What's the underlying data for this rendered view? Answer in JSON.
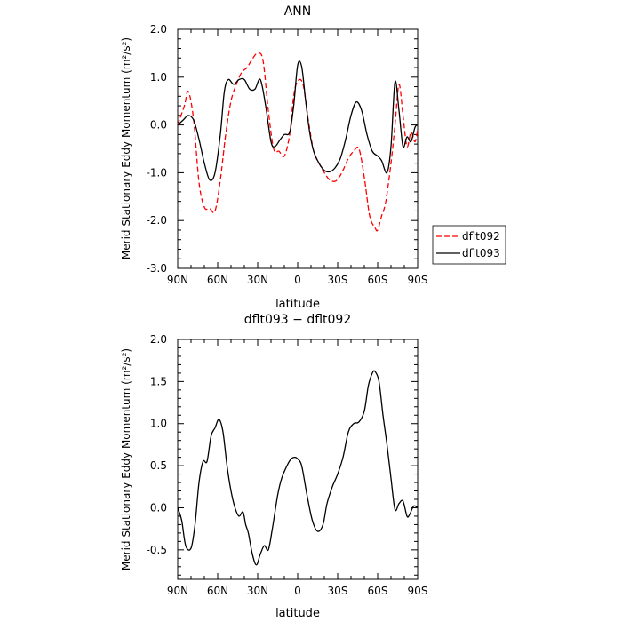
{
  "chart_data": [
    {
      "type": "line",
      "title": "ANN",
      "xlabel": "latitude",
      "ylabel": "Merid Stationary Eddy Momentum (m²/s²)",
      "xlim": [
        90,
        -90
      ],
      "ylim": [
        -3.0,
        2.0
      ],
      "xticks": [
        90,
        60,
        30,
        0,
        -30,
        -60,
        -90
      ],
      "xtick_labels": [
        "90N",
        "60N",
        "30N",
        "0",
        "30S",
        "60S",
        "90S"
      ],
      "yticks": [
        -3.0,
        -2.0,
        -1.0,
        0.0,
        1.0,
        2.0
      ],
      "ytick_labels": [
        "-3.0",
        "-2.0",
        "-1.0",
        "0.0",
        "1.0",
        "2.0"
      ],
      "legend_position": "right",
      "series": [
        {
          "name": "dflt092",
          "color": "#ff0000",
          "dash": "dashed",
          "x": [
            90,
            85,
            82,
            78,
            74,
            70,
            66,
            62,
            58,
            54,
            50,
            46,
            42,
            38,
            34,
            30,
            26,
            22,
            18,
            14,
            10,
            6,
            3,
            0,
            -4,
            -8,
            -12,
            -16,
            -20,
            -24,
            -28,
            -31,
            -34,
            -38,
            -42,
            -46,
            -50,
            -54,
            -58,
            -60,
            -63,
            -66,
            -70,
            -73,
            -76,
            -79,
            -82,
            -85,
            -88,
            -90
          ],
          "y": [
            0.0,
            0.4,
            0.7,
            0.1,
            -1.2,
            -1.72,
            -1.75,
            -1.8,
            -1.15,
            -0.2,
            0.5,
            0.85,
            1.1,
            1.2,
            1.38,
            1.5,
            1.35,
            0.3,
            -0.5,
            -0.55,
            -0.65,
            -0.2,
            0.6,
            0.92,
            0.85,
            0.1,
            -0.55,
            -0.8,
            -1.0,
            -1.15,
            -1.18,
            -1.1,
            -0.95,
            -0.7,
            -0.55,
            -0.5,
            -1.1,
            -1.9,
            -2.15,
            -2.2,
            -1.9,
            -1.62,
            -0.8,
            0.0,
            0.85,
            0.2,
            -0.45,
            -0.15,
            -0.35,
            -0.1
          ]
        },
        {
          "name": "dflt093",
          "color": "#000000",
          "dash": "solid",
          "x": [
            90,
            86,
            82,
            78,
            74,
            70,
            66,
            62,
            58,
            55,
            52,
            48,
            44,
            40,
            36,
            32,
            28,
            24,
            20,
            17,
            13,
            10,
            6,
            3,
            0,
            -3,
            -6,
            -9,
            -12,
            -16,
            -20,
            -24,
            -28,
            -32,
            -36,
            -40,
            -44,
            -48,
            -52,
            -56,
            -60,
            -63,
            -67,
            -70,
            -73,
            -76,
            -79,
            -82,
            -85,
            -88,
            -90
          ],
          "y": [
            0.0,
            0.1,
            0.2,
            0.1,
            -0.3,
            -0.8,
            -1.15,
            -1.0,
            -0.2,
            0.7,
            0.95,
            0.85,
            0.95,
            0.95,
            0.75,
            0.75,
            0.95,
            0.4,
            -0.35,
            -0.45,
            -0.3,
            -0.2,
            -0.15,
            0.4,
            1.25,
            1.22,
            0.5,
            -0.15,
            -0.55,
            -0.8,
            -0.95,
            -0.98,
            -0.9,
            -0.7,
            -0.3,
            0.2,
            0.48,
            0.3,
            -0.2,
            -0.55,
            -0.65,
            -0.75,
            -1.0,
            -0.45,
            0.9,
            0.3,
            -0.45,
            -0.25,
            -0.35,
            -0.05,
            0.0
          ]
        }
      ]
    },
    {
      "type": "line",
      "title": "dflt093 − dflt092",
      "xlabel": "latitude",
      "ylabel": "Merid Stationary Eddy Momentum (m²/s²)",
      "xlim": [
        90,
        -90
      ],
      "ylim": [
        -0.85,
        2.0
      ],
      "xticks": [
        90,
        60,
        30,
        0,
        -30,
        -60,
        -90
      ],
      "xtick_labels": [
        "90N",
        "60N",
        "30N",
        "0",
        "30S",
        "60S",
        "90S"
      ],
      "yticks": [
        -0.5,
        0.0,
        0.5,
        1.0,
        1.5,
        2.0
      ],
      "ytick_labels": [
        "-0.5",
        "0.0",
        "0.5",
        "1.0",
        "1.5",
        "2.0"
      ],
      "series": [
        {
          "color": "#000000",
          "dash": "solid",
          "x": [
            90,
            87,
            84,
            80,
            77,
            74,
            71,
            68,
            65,
            62,
            59,
            56,
            53,
            50,
            47,
            44,
            41,
            39,
            37,
            34,
            31,
            28,
            25,
            22,
            19,
            15,
            12,
            8,
            5,
            2,
            0,
            -3,
            -7,
            -11,
            -15,
            -19,
            -22,
            -26,
            -30,
            -34,
            -38,
            -42,
            -46,
            -50,
            -53,
            -56,
            -58,
            -61,
            -64,
            -67,
            -70,
            -73,
            -76,
            -79,
            -82,
            -84,
            -87,
            -90
          ],
          "y": [
            0.0,
            -0.15,
            -0.45,
            -0.48,
            -0.2,
            0.3,
            0.55,
            0.55,
            0.85,
            0.95,
            1.05,
            0.9,
            0.5,
            0.2,
            0.0,
            -0.1,
            -0.05,
            -0.2,
            -0.3,
            -0.55,
            -0.68,
            -0.55,
            -0.45,
            -0.5,
            -0.25,
            0.15,
            0.35,
            0.5,
            0.58,
            0.6,
            0.58,
            0.5,
            0.15,
            -0.15,
            -0.28,
            -0.2,
            0.05,
            0.25,
            0.4,
            0.6,
            0.9,
            1.0,
            1.02,
            1.15,
            1.45,
            1.6,
            1.62,
            1.5,
            1.1,
            0.75,
            0.35,
            -0.02,
            0.05,
            0.08,
            -0.1,
            -0.08,
            0.02,
            0.0
          ]
        }
      ]
    }
  ],
  "legend": {
    "items": [
      {
        "label": "dflt092",
        "color": "#ff0000",
        "dash": "dashed"
      },
      {
        "label": "dflt093",
        "color": "#000000",
        "dash": "solid"
      }
    ]
  }
}
